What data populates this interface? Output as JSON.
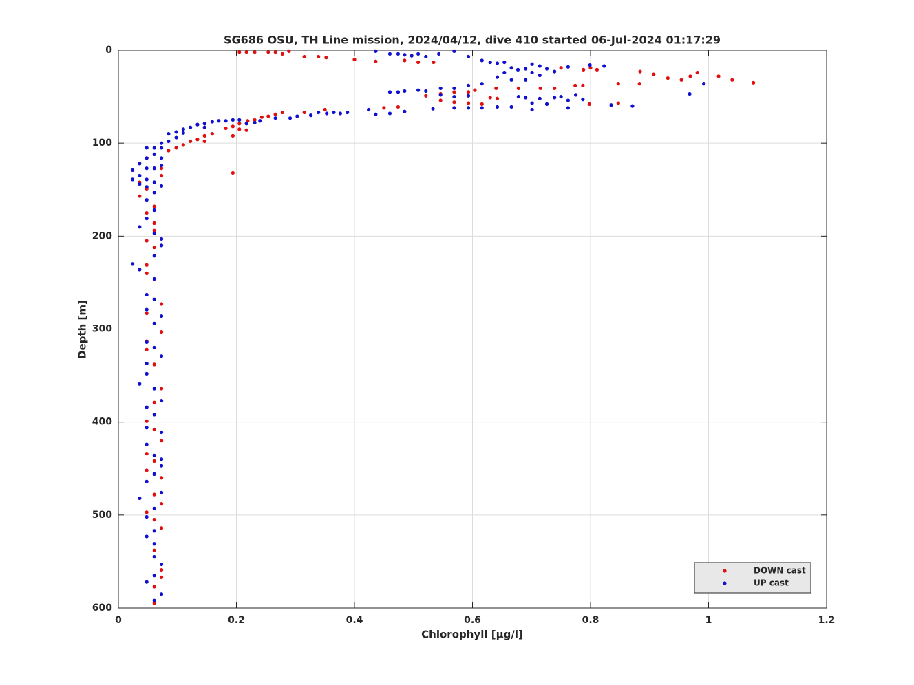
{
  "chart_data": {
    "type": "scatter",
    "title": "SG686 OSU, TH Line mission, 2024/04/12, dive 410 started 06-Jul-2024 01:17:29",
    "x_label": "Chlorophyll [μg/l]",
    "y_label": "Depth [m]",
    "xlim": [
      0,
      1.2
    ],
    "xticks": [
      0,
      0.2,
      0.4,
      0.6,
      0.8,
      1,
      1.2
    ],
    "ylim": [
      0,
      600
    ],
    "yticks": [
      0,
      100,
      200,
      300,
      400,
      500,
      600
    ],
    "y_reversed": true,
    "grid": true,
    "legend": "lower right",
    "series": [
      {
        "name": "DOWN cast",
        "color": "#e01010",
        "x": [
          0.205,
          0.217,
          0.231,
          0.254,
          0.266,
          0.278,
          0.289,
          0.315,
          0.339,
          0.352,
          0.4,
          0.436,
          0.485,
          0.508,
          0.534,
          0.75,
          0.788,
          0.8,
          0.811,
          0.884,
          0.907,
          0.931,
          0.954,
          0.969,
          0.981,
          1.017,
          1.04,
          1.076,
          0.883,
          0.847,
          0.798,
          0.847,
          0.774,
          0.787,
          0.715,
          0.739,
          0.678,
          0.64,
          0.604,
          0.593,
          0.569,
          0.546,
          0.521,
          0.546,
          0.569,
          0.593,
          0.616,
          0.63,
          0.642,
          0.45,
          0.474,
          0.35,
          0.315,
          0.278,
          0.266,
          0.254,
          0.243,
          0.231,
          0.219,
          0.205,
          0.194,
          0.182,
          0.205,
          0.217,
          0.194,
          0.159,
          0.146,
          0.134,
          0.146,
          0.122,
          0.11,
          0.098,
          0.085,
          0.194,
          0.048,
          0.073,
          0.073,
          0.036,
          0.048,
          0.036,
          0.061,
          0.048,
          0.061,
          0.061,
          0.048,
          0.061,
          0.048,
          0.048,
          0.073,
          0.048,
          0.073,
          0.048,
          0.048,
          0.061,
          0.073,
          0.061,
          0.048,
          0.061,
          0.073,
          0.048,
          0.061,
          0.048,
          0.073,
          0.061,
          0.073,
          0.048,
          0.061,
          0.073,
          0.061,
          0.073,
          0.073,
          0.061,
          0.061
        ],
        "values": [
          2,
          2,
          2,
          2,
          2,
          4,
          1,
          7,
          7,
          8,
          10,
          12,
          11,
          13,
          13,
          19,
          21,
          19,
          21,
          23,
          26,
          30,
          32,
          28,
          24,
          28,
          32,
          35,
          36,
          36,
          58,
          57,
          38,
          38,
          41,
          41,
          41,
          41,
          43,
          45,
          45,
          47,
          49,
          54,
          56,
          57,
          58,
          51,
          52,
          62,
          61,
          64,
          67,
          67,
          69,
          71,
          72,
          75,
          76,
          79,
          82,
          84,
          85,
          86,
          92,
          90,
          92,
          96,
          98,
          98,
          102,
          105,
          108,
          132,
          116,
          127,
          135,
          142,
          149,
          157,
          168,
          175,
          186,
          194,
          205,
          212,
          231,
          240,
          273,
          283,
          303,
          313,
          322,
          338,
          364,
          379,
          399,
          408,
          420,
          434,
          442,
          452,
          460,
          478,
          488,
          497,
          505,
          514,
          538,
          559,
          567,
          577,
          595
        ]
      },
      {
        "name": "UP cast",
        "color": "#1010d0",
        "x": [
          0.436,
          0.46,
          0.474,
          0.485,
          0.497,
          0.508,
          0.521,
          0.543,
          0.569,
          0.593,
          0.616,
          0.63,
          0.642,
          0.654,
          0.666,
          0.677,
          0.69,
          0.701,
          0.701,
          0.714,
          0.726,
          0.739,
          0.762,
          0.799,
          0.823,
          0.654,
          0.642,
          0.666,
          0.69,
          0.714,
          0.616,
          0.593,
          0.569,
          0.546,
          0.521,
          0.485,
          0.474,
          0.46,
          0.508,
          0.546,
          0.569,
          0.593,
          0.678,
          0.69,
          0.714,
          0.739,
          0.762,
          0.787,
          0.775,
          0.75,
          0.701,
          0.726,
          0.762,
          0.666,
          0.642,
          0.616,
          0.593,
          0.569,
          0.533,
          0.835,
          0.871,
          0.992,
          0.968,
          0.701,
          0.485,
          0.46,
          0.436,
          0.424,
          0.388,
          0.376,
          0.365,
          0.353,
          0.339,
          0.326,
          0.303,
          0.291,
          0.266,
          0.24,
          0.231,
          0.217,
          0.205,
          0.194,
          0.182,
          0.17,
          0.159,
          0.146,
          0.146,
          0.134,
          0.122,
          0.11,
          0.11,
          0.098,
          0.098,
          0.085,
          0.085,
          0.073,
          0.073,
          0.048,
          0.061,
          0.048,
          0.061,
          0.073,
          0.048,
          0.061,
          0.073,
          0.036,
          0.024,
          0.024,
          0.036,
          0.048,
          0.061,
          0.073,
          0.048,
          0.061,
          0.036,
          0.048,
          0.061,
          0.048,
          0.036,
          0.061,
          0.073,
          0.073,
          0.061,
          0.024,
          0.036,
          0.061,
          0.048,
          0.061,
          0.073,
          0.048,
          0.061,
          0.048,
          0.061,
          0.073,
          0.048,
          0.048,
          0.036,
          0.061,
          0.073,
          0.048,
          0.061,
          0.048,
          0.073,
          0.048,
          0.061,
          0.073,
          0.073,
          0.061,
          0.048,
          0.073,
          0.036,
          0.061,
          0.048,
          0.061,
          0.048,
          0.061,
          0.061,
          0.073,
          0.061,
          0.048,
          0.073,
          0.061
        ],
        "values": [
          1,
          4,
          4,
          5,
          6,
          4,
          7,
          4,
          1,
          7,
          11,
          13,
          14,
          13,
          19,
          21,
          20,
          15,
          24,
          17,
          20,
          23,
          18,
          16,
          17,
          24,
          29,
          32,
          32,
          27,
          36,
          38,
          41,
          41,
          44,
          44,
          45,
          45,
          43,
          48,
          50,
          49,
          50,
          51,
          52,
          51,
          54,
          53,
          48,
          50,
          57,
          58,
          62,
          61,
          61,
          62,
          62,
          62,
          63,
          59,
          60,
          36,
          47,
          64,
          66,
          68,
          69,
          64,
          67,
          68,
          67,
          68,
          67,
          70,
          71,
          73,
          73,
          76,
          78,
          79,
          75,
          75,
          76,
          76,
          77,
          79,
          83,
          80,
          83,
          85,
          89,
          88,
          94,
          90,
          98,
          100,
          105,
          105,
          105,
          116,
          112,
          116,
          127,
          127,
          124,
          122,
          129,
          139,
          135,
          139,
          142,
          146,
          147,
          153,
          144,
          161,
          172,
          181,
          190,
          197,
          203,
          210,
          221,
          230,
          236,
          246,
          263,
          268,
          286,
          279,
          294,
          314,
          320,
          329,
          337,
          348,
          359,
          364,
          377,
          384,
          392,
          406,
          411,
          424,
          436,
          440,
          447,
          456,
          464,
          476,
          482,
          493,
          502,
          517,
          523,
          531,
          545,
          553,
          565,
          572,
          585,
          592
        ]
      }
    ]
  }
}
